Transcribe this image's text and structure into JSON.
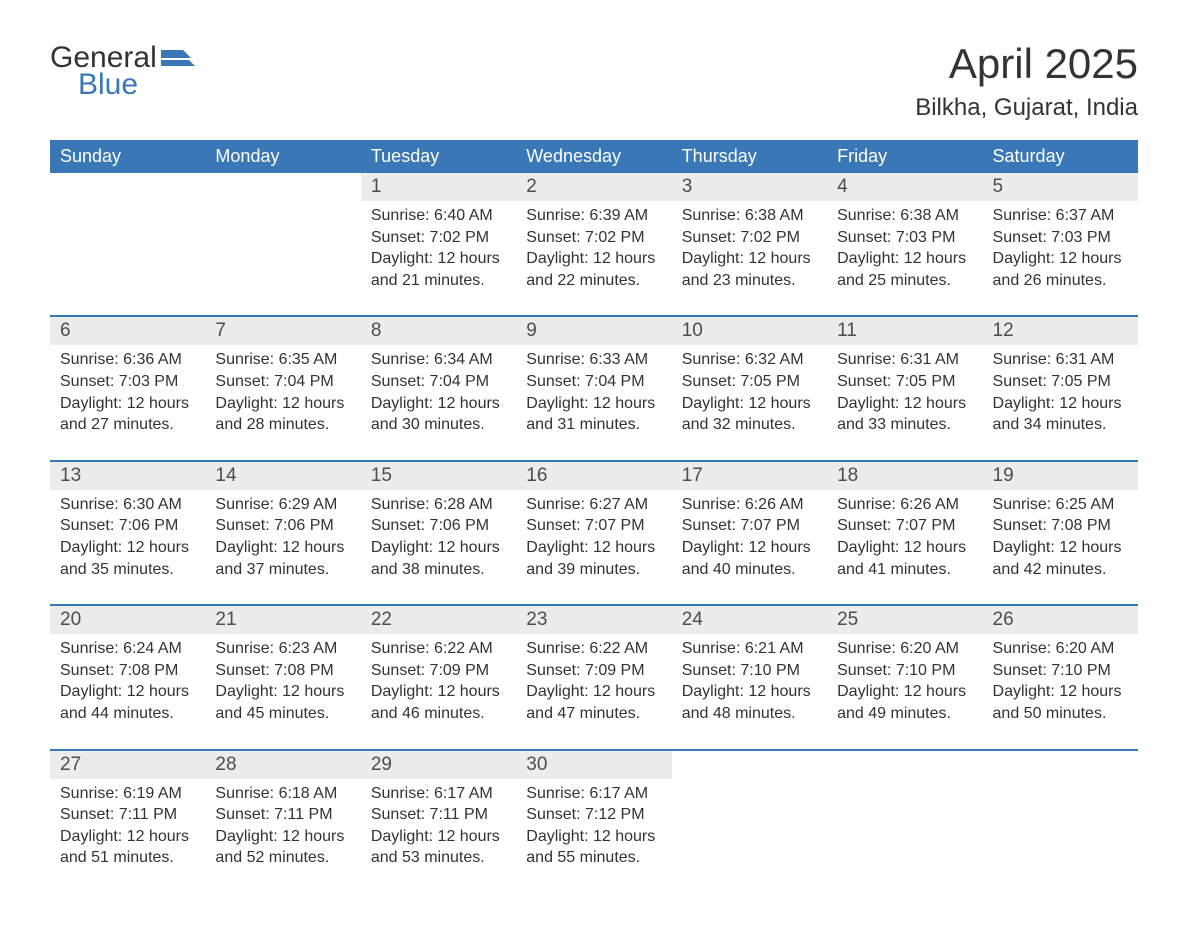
{
  "logo": {
    "text1": "General",
    "text2": "Blue"
  },
  "title": "April 2025",
  "subtitle": "Bilkha, Gujarat, India",
  "colors": {
    "header_bg": "#3a77b6",
    "header_text": "#ffffff",
    "daynum_bg": "#ececec",
    "border": "#3a77b6",
    "text": "#333333",
    "page_bg": "#ffffff"
  },
  "typography": {
    "title_fontsize": 42,
    "subtitle_fontsize": 24,
    "header_fontsize": 18,
    "daynum_fontsize": 19,
    "detail_fontsize": 16
  },
  "columns": [
    "Sunday",
    "Monday",
    "Tuesday",
    "Wednesday",
    "Thursday",
    "Friday",
    "Saturday"
  ],
  "weeks": [
    [
      null,
      null,
      {
        "day": "1",
        "sunrise": "6:40 AM",
        "sunset": "7:02 PM",
        "daylight": "12 hours and 21 minutes."
      },
      {
        "day": "2",
        "sunrise": "6:39 AM",
        "sunset": "7:02 PM",
        "daylight": "12 hours and 22 minutes."
      },
      {
        "day": "3",
        "sunrise": "6:38 AM",
        "sunset": "7:02 PM",
        "daylight": "12 hours and 23 minutes."
      },
      {
        "day": "4",
        "sunrise": "6:38 AM",
        "sunset": "7:03 PM",
        "daylight": "12 hours and 25 minutes."
      },
      {
        "day": "5",
        "sunrise": "6:37 AM",
        "sunset": "7:03 PM",
        "daylight": "12 hours and 26 minutes."
      }
    ],
    [
      {
        "day": "6",
        "sunrise": "6:36 AM",
        "sunset": "7:03 PM",
        "daylight": "12 hours and 27 minutes."
      },
      {
        "day": "7",
        "sunrise": "6:35 AM",
        "sunset": "7:04 PM",
        "daylight": "12 hours and 28 minutes."
      },
      {
        "day": "8",
        "sunrise": "6:34 AM",
        "sunset": "7:04 PM",
        "daylight": "12 hours and 30 minutes."
      },
      {
        "day": "9",
        "sunrise": "6:33 AM",
        "sunset": "7:04 PM",
        "daylight": "12 hours and 31 minutes."
      },
      {
        "day": "10",
        "sunrise": "6:32 AM",
        "sunset": "7:05 PM",
        "daylight": "12 hours and 32 minutes."
      },
      {
        "day": "11",
        "sunrise": "6:31 AM",
        "sunset": "7:05 PM",
        "daylight": "12 hours and 33 minutes."
      },
      {
        "day": "12",
        "sunrise": "6:31 AM",
        "sunset": "7:05 PM",
        "daylight": "12 hours and 34 minutes."
      }
    ],
    [
      {
        "day": "13",
        "sunrise": "6:30 AM",
        "sunset": "7:06 PM",
        "daylight": "12 hours and 35 minutes."
      },
      {
        "day": "14",
        "sunrise": "6:29 AM",
        "sunset": "7:06 PM",
        "daylight": "12 hours and 37 minutes."
      },
      {
        "day": "15",
        "sunrise": "6:28 AM",
        "sunset": "7:06 PM",
        "daylight": "12 hours and 38 minutes."
      },
      {
        "day": "16",
        "sunrise": "6:27 AM",
        "sunset": "7:07 PM",
        "daylight": "12 hours and 39 minutes."
      },
      {
        "day": "17",
        "sunrise": "6:26 AM",
        "sunset": "7:07 PM",
        "daylight": "12 hours and 40 minutes."
      },
      {
        "day": "18",
        "sunrise": "6:26 AM",
        "sunset": "7:07 PM",
        "daylight": "12 hours and 41 minutes."
      },
      {
        "day": "19",
        "sunrise": "6:25 AM",
        "sunset": "7:08 PM",
        "daylight": "12 hours and 42 minutes."
      }
    ],
    [
      {
        "day": "20",
        "sunrise": "6:24 AM",
        "sunset": "7:08 PM",
        "daylight": "12 hours and 44 minutes."
      },
      {
        "day": "21",
        "sunrise": "6:23 AM",
        "sunset": "7:08 PM",
        "daylight": "12 hours and 45 minutes."
      },
      {
        "day": "22",
        "sunrise": "6:22 AM",
        "sunset": "7:09 PM",
        "daylight": "12 hours and 46 minutes."
      },
      {
        "day": "23",
        "sunrise": "6:22 AM",
        "sunset": "7:09 PM",
        "daylight": "12 hours and 47 minutes."
      },
      {
        "day": "24",
        "sunrise": "6:21 AM",
        "sunset": "7:10 PM",
        "daylight": "12 hours and 48 minutes."
      },
      {
        "day": "25",
        "sunrise": "6:20 AM",
        "sunset": "7:10 PM",
        "daylight": "12 hours and 49 minutes."
      },
      {
        "day": "26",
        "sunrise": "6:20 AM",
        "sunset": "7:10 PM",
        "daylight": "12 hours and 50 minutes."
      }
    ],
    [
      {
        "day": "27",
        "sunrise": "6:19 AM",
        "sunset": "7:11 PM",
        "daylight": "12 hours and 51 minutes."
      },
      {
        "day": "28",
        "sunrise": "6:18 AM",
        "sunset": "7:11 PM",
        "daylight": "12 hours and 52 minutes."
      },
      {
        "day": "29",
        "sunrise": "6:17 AM",
        "sunset": "7:11 PM",
        "daylight": "12 hours and 53 minutes."
      },
      {
        "day": "30",
        "sunrise": "6:17 AM",
        "sunset": "7:12 PM",
        "daylight": "12 hours and 55 minutes."
      },
      null,
      null,
      null
    ]
  ],
  "labels": {
    "sunrise": "Sunrise: ",
    "sunset": "Sunset: ",
    "daylight": "Daylight: "
  }
}
